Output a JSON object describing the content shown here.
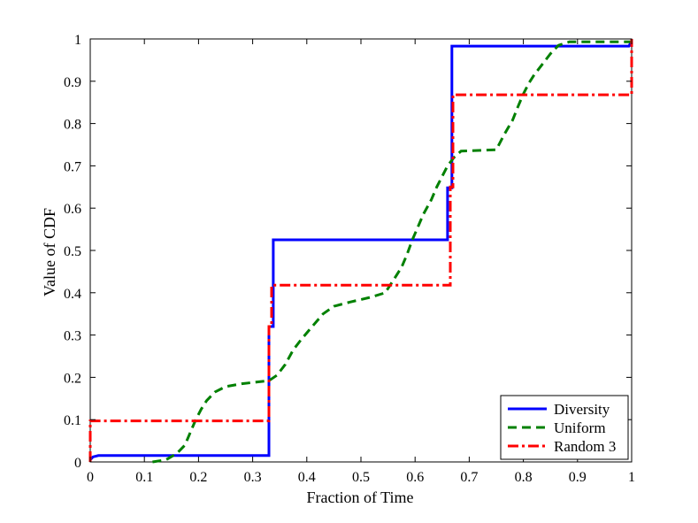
{
  "chart_data": {
    "type": "line",
    "xlabel": "Fraction of Time",
    "ylabel": "Value of CDF",
    "xlim": [
      0,
      1
    ],
    "ylim": [
      0,
      1
    ],
    "grid": false,
    "legend_position": "bottom-right",
    "xticks": [
      "0",
      "0.1",
      "0.2",
      "0.3",
      "0.4",
      "0.5",
      "0.6",
      "0.7",
      "0.8",
      "0.9",
      "1"
    ],
    "yticks": [
      "0",
      "0.1",
      "0.2",
      "0.3",
      "0.4",
      "0.5",
      "0.6",
      "0.7",
      "0.8",
      "0.9",
      "1"
    ],
    "series": [
      {
        "name": "Diversity",
        "color": "#0000ff",
        "style": "solid",
        "points": [
          [
            0,
            0.005
          ],
          [
            0.005,
            0.012
          ],
          [
            0.015,
            0.015
          ],
          [
            0.33,
            0.015
          ],
          [
            0.33,
            0.32
          ],
          [
            0.338,
            0.32
          ],
          [
            0.338,
            0.525
          ],
          [
            0.66,
            0.525
          ],
          [
            0.66,
            0.648
          ],
          [
            0.668,
            0.648
          ],
          [
            0.668,
            0.983
          ],
          [
            0.995,
            0.983
          ],
          [
            1.0,
            0.995
          ]
        ]
      },
      {
        "name": "Uniform",
        "color": "#008000",
        "style": "dashed",
        "points": [
          [
            0.115,
            0.0
          ],
          [
            0.14,
            0.005
          ],
          [
            0.16,
            0.02
          ],
          [
            0.175,
            0.04
          ],
          [
            0.185,
            0.07
          ],
          [
            0.195,
            0.1
          ],
          [
            0.205,
            0.125
          ],
          [
            0.215,
            0.145
          ],
          [
            0.23,
            0.165
          ],
          [
            0.25,
            0.178
          ],
          [
            0.28,
            0.185
          ],
          [
            0.33,
            0.192
          ],
          [
            0.345,
            0.205
          ],
          [
            0.36,
            0.23
          ],
          [
            0.375,
            0.265
          ],
          [
            0.39,
            0.29
          ],
          [
            0.41,
            0.32
          ],
          [
            0.43,
            0.35
          ],
          [
            0.45,
            0.368
          ],
          [
            0.48,
            0.378
          ],
          [
            0.52,
            0.39
          ],
          [
            0.545,
            0.4
          ],
          [
            0.56,
            0.43
          ],
          [
            0.575,
            0.46
          ],
          [
            0.585,
            0.49
          ],
          [
            0.595,
            0.525
          ],
          [
            0.605,
            0.555
          ],
          [
            0.615,
            0.585
          ],
          [
            0.63,
            0.62
          ],
          [
            0.64,
            0.65
          ],
          [
            0.65,
            0.675
          ],
          [
            0.66,
            0.7
          ],
          [
            0.672,
            0.72
          ],
          [
            0.685,
            0.735
          ],
          [
            0.75,
            0.738
          ],
          [
            0.765,
            0.775
          ],
          [
            0.78,
            0.808
          ],
          [
            0.79,
            0.84
          ],
          [
            0.8,
            0.87
          ],
          [
            0.81,
            0.895
          ],
          [
            0.82,
            0.915
          ],
          [
            0.835,
            0.94
          ],
          [
            0.85,
            0.965
          ],
          [
            0.865,
            0.985
          ],
          [
            0.885,
            0.993
          ],
          [
            1.0,
            0.993
          ]
        ]
      },
      {
        "name": "Random 3",
        "color": "#ff0000",
        "style": "dashdot",
        "points": [
          [
            0,
            0.0
          ],
          [
            0,
            0.097
          ],
          [
            0.33,
            0.097
          ],
          [
            0.33,
            0.32
          ],
          [
            0.335,
            0.32
          ],
          [
            0.335,
            0.418
          ],
          [
            0.665,
            0.418
          ],
          [
            0.665,
            0.65
          ],
          [
            0.67,
            0.65
          ],
          [
            0.67,
            0.868
          ],
          [
            1.0,
            0.868
          ],
          [
            1.0,
            1.0
          ]
        ]
      }
    ]
  }
}
